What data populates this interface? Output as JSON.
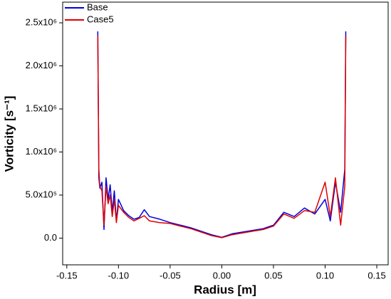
{
  "chart_data": {
    "type": "line",
    "xlabel": "Radius [m]",
    "ylabel": "Vorticity [s⁻¹]",
    "xlim": [
      -0.154,
      0.161
    ],
    "ylim": [
      -310000,
      2740000
    ],
    "xticks": [
      -0.15,
      {
        "value": -0.1,
        "label": "-0.10"
      },
      -0.05,
      {
        "value": 0,
        "label": "0.00"
      },
      0.05,
      {
        "value": 0.1,
        "label": "0.10"
      },
      0.15
    ],
    "yticks": [
      {
        "value": 0,
        "label": "0.0"
      },
      {
        "value": 500000,
        "label": "5.0x10⁵"
      },
      {
        "value": 1000000,
        "label": "1.0x10⁶"
      },
      {
        "value": 1500000,
        "label": "1.5x10⁶"
      },
      {
        "value": 2000000,
        "label": "2.0x10⁶"
      },
      {
        "value": 2500000,
        "label": "2.5x10⁶"
      }
    ],
    "legend": "upper left",
    "series": [
      {
        "name": "Base",
        "color": "#0000e0",
        "x": [
          -0.12,
          -0.119,
          -0.118,
          -0.116,
          -0.114,
          -0.112,
          -0.11,
          -0.108,
          -0.106,
          -0.104,
          -0.102,
          -0.1,
          -0.095,
          -0.09,
          -0.085,
          -0.08,
          -0.075,
          -0.07,
          -0.06,
          -0.05,
          -0.04,
          -0.03,
          -0.02,
          -0.01,
          0,
          0.01,
          0.02,
          0.03,
          0.04,
          0.05,
          0.06,
          0.07,
          0.08,
          0.09,
          0.1,
          0.105,
          0.11,
          0.115,
          0.119,
          0.12
        ],
        "values": [
          2400000,
          700000,
          580000,
          650000,
          100000,
          700000,
          450000,
          620000,
          300000,
          550000,
          200000,
          450000,
          320000,
          260000,
          220000,
          240000,
          330000,
          250000,
          220000,
          180000,
          150000,
          120000,
          80000,
          40000,
          10000,
          50000,
          70000,
          90000,
          110000,
          150000,
          300000,
          250000,
          350000,
          280000,
          450000,
          200000,
          650000,
          300000,
          800000,
          2400000
        ]
      },
      {
        "name": "Case5",
        "color": "#e00000",
        "x": [
          -0.12,
          -0.119,
          -0.118,
          -0.116,
          -0.114,
          -0.112,
          -0.11,
          -0.108,
          -0.106,
          -0.104,
          -0.102,
          -0.1,
          -0.095,
          -0.09,
          -0.085,
          -0.08,
          -0.075,
          -0.07,
          -0.06,
          -0.05,
          -0.04,
          -0.03,
          -0.02,
          -0.01,
          0,
          0.01,
          0.02,
          0.03,
          0.04,
          0.05,
          0.06,
          0.07,
          0.08,
          0.09,
          0.1,
          0.105,
          0.11,
          0.115,
          0.119,
          0.12
        ],
        "values": [
          2350000,
          800000,
          600000,
          550000,
          150000,
          600000,
          400000,
          500000,
          250000,
          450000,
          180000,
          380000,
          300000,
          240000,
          200000,
          230000,
          260000,
          200000,
          180000,
          170000,
          140000,
          110000,
          70000,
          30000,
          5000,
          40000,
          60000,
          80000,
          100000,
          140000,
          280000,
          230000,
          320000,
          300000,
          650000,
          250000,
          700000,
          150000,
          600000,
          2350000
        ]
      }
    ]
  }
}
